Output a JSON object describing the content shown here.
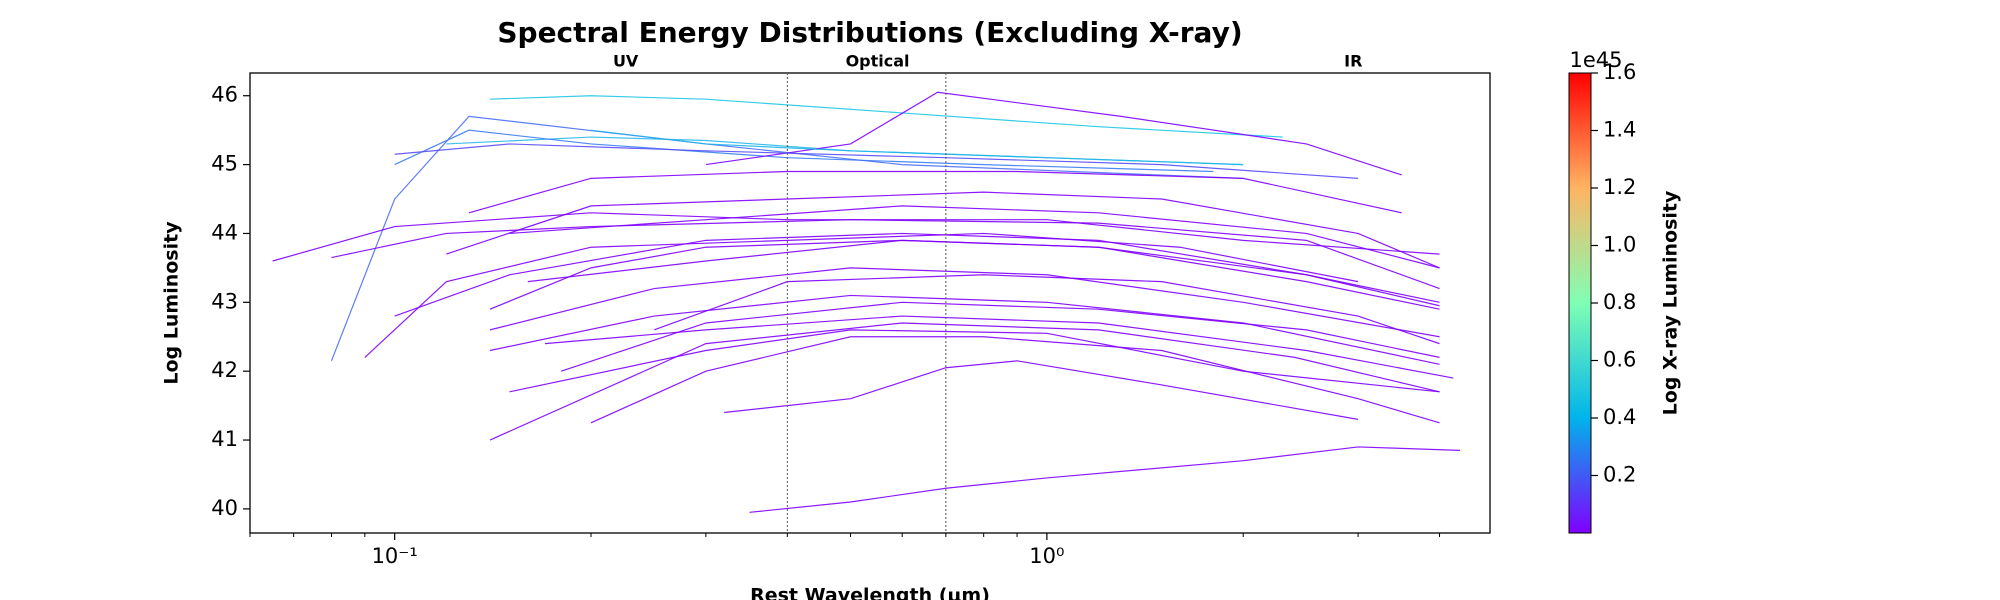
{
  "chart_data": {
    "type": "line",
    "title": "Spectral Energy Distributions (Excluding X-ray)",
    "xlabel": "Rest Wavelength (μm)",
    "ylabel": "Log Luminosity",
    "xscale": "log",
    "xlim": [
      0.06,
      4.78
    ],
    "ylim": [
      39.65,
      46.33
    ],
    "xticks": [
      {
        "value": 0.1,
        "label": "10⁻¹"
      },
      {
        "value": 1,
        "label": "10⁰"
      }
    ],
    "yticks": [
      40,
      41,
      42,
      43,
      44,
      45,
      46
    ],
    "vlines": [
      0.4,
      0.7
    ],
    "annotations": [
      {
        "text": "UV",
        "x": 0.226
      },
      {
        "text": "Optical",
        "x": 0.55
      },
      {
        "text": "IR",
        "x": 2.95
      }
    ],
    "colorbar": {
      "label": "Log X-ray Luminosity",
      "offset_label": "1e45",
      "lim": [
        0,
        1.6
      ],
      "ticks": [
        0.2,
        0.4,
        0.6,
        0.8,
        {
          "value": 1.0,
          "label": "1.0"
        },
        1.2,
        1.4,
        1.6
      ]
    },
    "series": [
      {
        "color": "#1fc6e6",
        "x": [
          0.14,
          0.2,
          0.3,
          0.6,
          1.2,
          2.3
        ],
        "values": [
          45.95,
          46.0,
          45.95,
          45.75,
          45.55,
          45.4
        ]
      },
      {
        "color": "#2ab8ea",
        "x": [
          0.12,
          0.2,
          0.3,
          0.5,
          1,
          2
        ],
        "values": [
          45.3,
          45.4,
          45.35,
          45.2,
          45.1,
          45.0
        ]
      },
      {
        "color": "#3a7df5",
        "x": [
          0.1,
          0.13,
          0.2,
          0.4,
          0.8,
          1.8
        ],
        "values": [
          45.0,
          45.5,
          45.3,
          45.1,
          45.0,
          44.9
        ]
      },
      {
        "color": "#4a6ff5",
        "x": [
          0.08,
          0.1,
          0.13,
          0.3,
          0.6,
          2
        ],
        "values": [
          42.15,
          44.5,
          45.7,
          45.3,
          45.0,
          44.8
        ]
      },
      {
        "color": "#8000ff",
        "x": [
          0.3,
          0.5,
          0.68,
          1.3,
          2.5,
          3.5
        ],
        "values": [
          45.0,
          45.3,
          46.05,
          45.7,
          45.3,
          44.85
        ]
      },
      {
        "color": "#8000ff",
        "x": [
          0.065,
          0.1,
          0.2,
          0.4,
          1,
          2,
          4
        ],
        "values": [
          43.6,
          44.1,
          44.3,
          44.2,
          44.2,
          43.9,
          43.7
        ]
      },
      {
        "color": "#8000ff",
        "x": [
          0.08,
          0.12,
          0.2,
          0.5,
          1.2,
          2.5,
          4
        ],
        "values": [
          43.65,
          44.0,
          44.1,
          44.2,
          44.15,
          43.9,
          43.2
        ]
      },
      {
        "color": "#8000ff",
        "x": [
          0.14,
          0.2,
          0.3,
          0.6,
          1.2,
          2.5,
          4
        ],
        "values": [
          42.9,
          43.5,
          43.8,
          43.9,
          43.8,
          43.4,
          42.95
        ]
      },
      {
        "color": "#8000ff",
        "x": [
          0.14,
          0.25,
          0.5,
          1,
          2,
          4
        ],
        "values": [
          42.3,
          42.8,
          43.1,
          43.0,
          42.7,
          42.1
        ]
      },
      {
        "color": "#8000ff",
        "x": [
          0.14,
          0.3,
          0.6,
          1.2,
          2.4,
          4
        ],
        "values": [
          41.0,
          42.4,
          42.7,
          42.6,
          42.2,
          41.7
        ]
      },
      {
        "color": "#8000ff",
        "x": [
          0.2,
          0.3,
          0.5,
          0.8,
          1.5,
          3,
          4
        ],
        "values": [
          41.25,
          42.0,
          42.5,
          42.5,
          42.3,
          41.6,
          41.25
        ]
      },
      {
        "color": "#8000ff",
        "x": [
          0.35,
          0.5,
          0.7,
          1,
          2,
          3,
          4.3
        ],
        "values": [
          39.95,
          40.1,
          40.3,
          40.45,
          40.7,
          40.9,
          40.85
        ]
      },
      {
        "color": "#8000ff",
        "x": [
          0.32,
          0.5,
          0.7,
          0.9,
          1.5,
          3
        ],
        "values": [
          41.4,
          41.6,
          42.05,
          42.15,
          41.8,
          41.3
        ]
      },
      {
        "color": "#8000ff",
        "x": [
          0.15,
          0.3,
          0.5,
          1,
          2,
          4
        ],
        "values": [
          41.7,
          42.3,
          42.6,
          42.55,
          42.0,
          41.7
        ]
      },
      {
        "color": "#8000ff",
        "x": [
          0.1,
          0.15,
          0.3,
          0.6,
          1.2,
          2.5,
          4
        ],
        "values": [
          42.8,
          43.4,
          43.9,
          44.0,
          43.9,
          43.4,
          43.0
        ]
      },
      {
        "color": "#8000ff",
        "x": [
          0.12,
          0.2,
          0.4,
          0.8,
          1.5,
          3,
          4
        ],
        "values": [
          43.7,
          44.4,
          44.5,
          44.6,
          44.5,
          44.0,
          43.5
        ]
      },
      {
        "color": "#8000ff",
        "x": [
          0.13,
          0.2,
          0.4,
          0.9,
          2,
          3.5
        ],
        "values": [
          44.3,
          44.8,
          44.9,
          44.9,
          44.8,
          44.3
        ]
      },
      {
        "color": "#8000ff",
        "x": [
          0.16,
          0.3,
          0.6,
          1.2,
          2.5,
          4
        ],
        "values": [
          43.3,
          43.6,
          43.9,
          43.8,
          43.3,
          42.9
        ]
      },
      {
        "color": "#8000ff",
        "x": [
          0.14,
          0.25,
          0.5,
          1,
          2,
          4
        ],
        "values": [
          42.6,
          43.2,
          43.5,
          43.4,
          43.0,
          42.5
        ]
      },
      {
        "color": "#8000ff",
        "x": [
          0.18,
          0.3,
          0.6,
          1.2,
          2.5,
          4
        ],
        "values": [
          42.0,
          42.7,
          43.0,
          42.9,
          42.6,
          42.2
        ]
      },
      {
        "color": "#8000ff",
        "x": [
          0.25,
          0.4,
          0.8,
          1.5,
          3,
          4
        ],
        "values": [
          42.6,
          43.3,
          43.4,
          43.3,
          42.8,
          42.4
        ]
      },
      {
        "color": "#8000ff",
        "x": [
          0.09,
          0.12,
          0.2,
          0.4,
          0.8,
          1.6,
          3
        ],
        "values": [
          42.2,
          43.3,
          43.8,
          43.9,
          44.0,
          43.8,
          43.3
        ]
      },
      {
        "color": "#20b4ea",
        "x": [
          0.2,
          0.3,
          0.5,
          1,
          2
        ],
        "values": [
          45.5,
          45.3,
          45.2,
          45.1,
          45.0
        ]
      },
      {
        "color": "#5a4cf8",
        "x": [
          0.1,
          0.15,
          0.3,
          0.7,
          1.5,
          3
        ],
        "values": [
          45.15,
          45.3,
          45.2,
          45.1,
          45.0,
          44.8
        ]
      },
      {
        "color": "#8000ff",
        "x": [
          0.15,
          0.3,
          0.6,
          1.2,
          2.5,
          4
        ],
        "values": [
          44.0,
          44.2,
          44.4,
          44.3,
          44.0,
          43.5
        ]
      },
      {
        "color": "#8000ff",
        "x": [
          0.17,
          0.3,
          0.6,
          1.2,
          2.5,
          4.2
        ],
        "values": [
          42.4,
          42.6,
          42.8,
          42.7,
          42.3,
          41.9
        ]
      }
    ]
  }
}
